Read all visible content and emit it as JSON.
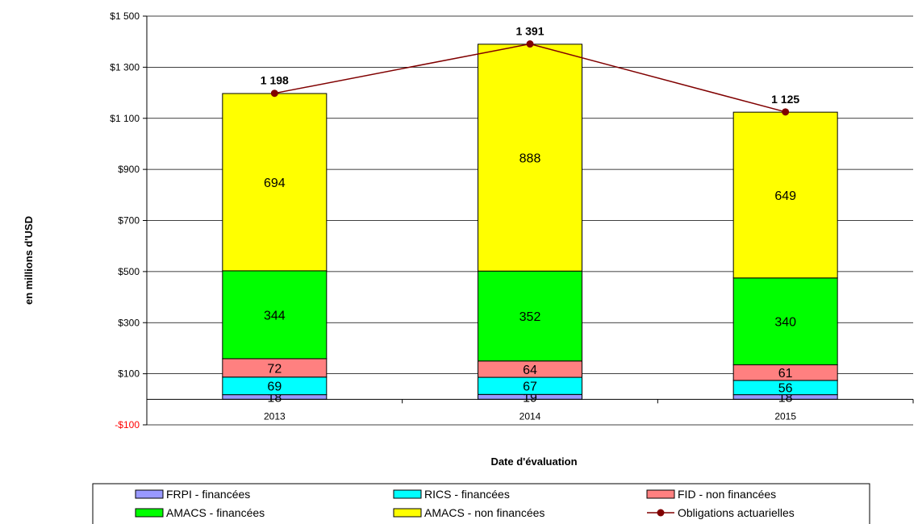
{
  "chart_data": {
    "type": "bar",
    "stacked": true,
    "categories": [
      "2013",
      "2014",
      "2015"
    ],
    "xlabel": "Date d'évaluation",
    "ylabel": "en millions d'USD",
    "ylim": [
      -100,
      1500
    ],
    "yticks": [
      -100,
      100,
      300,
      500,
      700,
      900,
      1100,
      1300,
      1500
    ],
    "ytick_labels": [
      "-$100",
      "$100",
      "$300",
      "$500",
      "$700",
      "$900",
      "$1 100",
      "$1 300",
      "$1 500"
    ],
    "negative_tick_color": "#ff0000",
    "series": [
      {
        "name": "FRPI - financées",
        "color": "#9999ff",
        "values": [
          18,
          19,
          18
        ],
        "labels": [
          "18",
          "19",
          "18"
        ]
      },
      {
        "name": "RICS - financées",
        "color": "#00ffff",
        "values": [
          69,
          67,
          56
        ],
        "labels": [
          "69",
          "67",
          "56"
        ]
      },
      {
        "name": "FID - non financées",
        "color": "#ff8080",
        "values": [
          72,
          64,
          61
        ],
        "labels": [
          "72",
          "64",
          "61"
        ]
      },
      {
        "name": "AMACS - financées",
        "color": "#00ff00",
        "values": [
          344,
          352,
          340
        ],
        "labels": [
          "344",
          "352",
          "340"
        ]
      },
      {
        "name": "AMACS - non financées",
        "color": "#ffff00",
        "values": [
          694,
          888,
          649
        ],
        "labels": [
          "694",
          "888",
          "649"
        ]
      }
    ],
    "line_series": {
      "name": "Obligations actuarielles",
      "color": "#800000",
      "values": [
        1198,
        1391,
        1125
      ],
      "labels": [
        "1 198",
        "1 391",
        "1 125"
      ]
    },
    "legend_position": "bottom",
    "grid": "horizontal"
  }
}
